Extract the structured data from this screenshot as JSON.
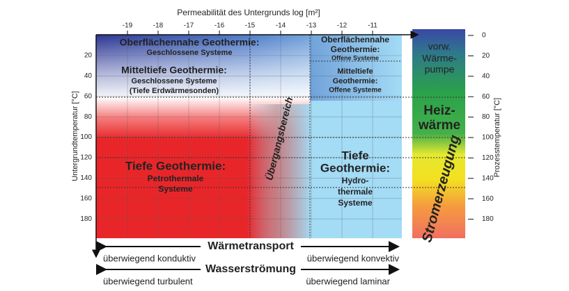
{
  "top_axis": {
    "title": "Permeabilität des Untergrunds log [m²]",
    "ticks": [
      "-19",
      "-18",
      "-17",
      "-16",
      "-15",
      "-14",
      "-13",
      "-12",
      "-11"
    ]
  },
  "left_axis": {
    "title": "Untergrundtemperatur [°C]",
    "ticks": [
      "20",
      "40",
      "60",
      "80",
      "100",
      "120",
      "140",
      "160",
      "180"
    ]
  },
  "right_axis": {
    "title": "Prozesstemperatur [°C]",
    "ticks": [
      "0",
      "20",
      "40",
      "60",
      "80",
      "100",
      "120",
      "140",
      "160",
      "180"
    ]
  },
  "regions": [
    {
      "lines": [
        "Oberflächennahe Geothermie:",
        "Geschlossene Systeme"
      ]
    },
    {
      "lines": [
        "Mitteltiefe Geothermie:",
        "Geschlossene Systeme",
        "(Tiefe Erdwärmesonden)"
      ]
    },
    {
      "lines": [
        "Oberflächennahe",
        "Geothermie:",
        "Offene Systeme"
      ]
    },
    {
      "lines": [
        "Mitteltiefe",
        "Geothermie:",
        "Offene Systeme"
      ]
    },
    {
      "lines": [
        "Tiefe Geothermie:",
        "Petrothermale",
        "Systeme"
      ]
    },
    {
      "lines": [
        "Tiefe",
        "Geothermie:",
        "Hydro-",
        "thermale",
        "Systeme"
      ]
    },
    {
      "lines": [
        "Übergangsbereich"
      ]
    }
  ],
  "process_bar": [
    {
      "lines": [
        "vorw.",
        "Wärme-",
        "pumpe"
      ]
    },
    {
      "lines": [
        "Heiz-",
        "wärme"
      ]
    },
    {
      "lines": [
        "Stromerzeugung"
      ]
    }
  ],
  "bottom": {
    "heat_transport": "Wärmetransport",
    "conductive": "überwiegend konduktiv",
    "convective": "überwiegend konvektiv",
    "water_flow": "Wasserströmung",
    "turbulent": "überwiegend turbulent",
    "laminar": "überwiegend laminar"
  }
}
